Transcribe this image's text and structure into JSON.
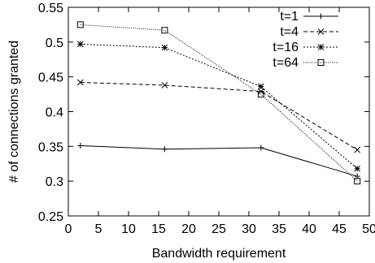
{
  "chart_data": {
    "type": "line",
    "xlabel": "Bandwidth requirement",
    "ylabel": "# of connections granted",
    "xlim": [
      0,
      50
    ],
    "ylim": [
      0.25,
      0.55
    ],
    "x_ticks": [
      0,
      5,
      10,
      15,
      20,
      25,
      30,
      35,
      40,
      45,
      50
    ],
    "y_ticks": [
      0.25,
      0.3,
      0.35,
      0.4,
      0.45,
      0.5,
      0.55
    ],
    "x_tick_labels": [
      "0",
      "5",
      "10",
      "15",
      "20",
      "25",
      "30",
      "35",
      "40",
      "45",
      "50"
    ],
    "y_tick_labels": [
      "0.25",
      "0.3",
      "0.35",
      "0.4",
      "0.45",
      "0.5",
      "0.55"
    ],
    "grid": false,
    "legend_position": "top-right",
    "x": [
      2,
      16,
      32,
      48
    ],
    "series": [
      {
        "name": "t=1",
        "marker": "plus",
        "dash": "solid",
        "values": [
          0.351,
          0.346,
          0.348,
          0.307
        ]
      },
      {
        "name": "t=4",
        "marker": "cross",
        "dash": "dashed",
        "values": [
          0.442,
          0.438,
          0.429,
          0.345
        ]
      },
      {
        "name": "t=16",
        "marker": "star",
        "dash": "dotted",
        "values": [
          0.497,
          0.492,
          0.436,
          0.318
        ]
      },
      {
        "name": "t=64",
        "marker": "box",
        "dash": "fine",
        "values": [
          0.525,
          0.517,
          0.425,
          0.3
        ]
      }
    ]
  }
}
